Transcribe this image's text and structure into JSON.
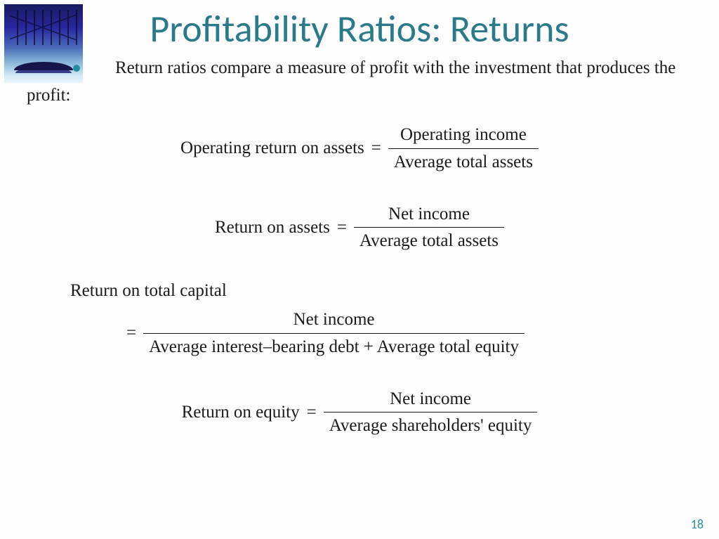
{
  "title": "Profitability Ratios: Returns",
  "title_color": "#2a7a8a",
  "title_fontsize": 54,
  "intro": "Return ratios compare a measure of profit with the investment that produces the profit:",
  "body_fontsize": 25,
  "body_color": "#1a1a1a",
  "bullet_color": "#2a8aa0",
  "page_number": "18",
  "page_number_color": "#2a8aa0",
  "background_color": "#fdfdfd",
  "formulas": {
    "f1": {
      "label": "Operating return on assets",
      "numerator": "Operating income",
      "denominator": "Average total assets"
    },
    "f2": {
      "label": "Return on assets",
      "numerator": "Net income",
      "denominator": "Average total assets"
    },
    "f3": {
      "label": "Return on total capital",
      "numerator": "Net income",
      "denominator": "Average interest–bearing debt + Average total equity"
    },
    "f4": {
      "label": "Return on equity",
      "numerator": "Net income",
      "denominator": "Average shareholders' equity"
    }
  },
  "corner_image": {
    "description": "bridge-photo",
    "gradient_top": "#1a1a5e",
    "gradient_bottom": "#e8f4fa"
  }
}
